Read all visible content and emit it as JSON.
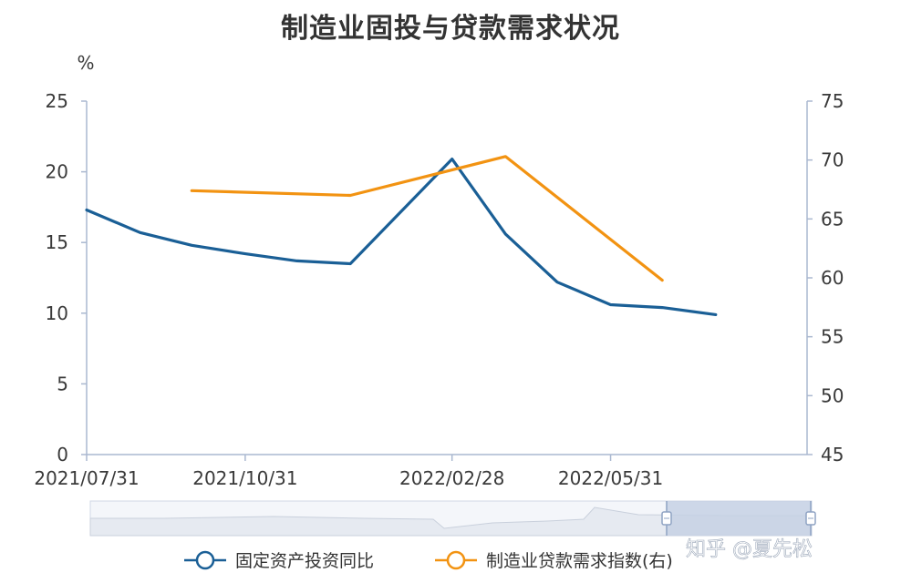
{
  "chart_data": {
    "type": "line",
    "title": "制造业固投与贷款需求状况",
    "left_unit": "%",
    "x_ticks": [
      "2021/07/31",
      "2021/10/31",
      "2022/02/28",
      "2022/05/31"
    ],
    "left_axis": {
      "ylim": [
        0,
        25
      ],
      "ticks": [
        0,
        5,
        10,
        15,
        20,
        25
      ]
    },
    "right_axis": {
      "ylim": [
        45,
        75
      ],
      "ticks": [
        45,
        50,
        55,
        60,
        65,
        70,
        75
      ]
    },
    "series": [
      {
        "name": "固定资产投资同比",
        "axis": "left",
        "color": "#1a5f96",
        "points": [
          {
            "x": "2021-07-31",
            "y": 17.3
          },
          {
            "x": "2021-08-31",
            "y": 15.7
          },
          {
            "x": "2021-09-30",
            "y": 14.8
          },
          {
            "x": "2021-10-31",
            "y": 14.2
          },
          {
            "x": "2021-11-30",
            "y": 13.7
          },
          {
            "x": "2021-12-31",
            "y": 13.5
          },
          {
            "x": "2022-02-28",
            "y": 20.9
          },
          {
            "x": "2022-03-31",
            "y": 15.6
          },
          {
            "x": "2022-04-30",
            "y": 12.2
          },
          {
            "x": "2022-05-31",
            "y": 10.6
          },
          {
            "x": "2022-06-30",
            "y": 10.4
          },
          {
            "x": "2022-07-31",
            "y": 9.9
          }
        ]
      },
      {
        "name": "制造业贷款需求指数(右)",
        "axis": "right",
        "color": "#f29312",
        "points": [
          {
            "x": "2021-09-30",
            "y": 67.4
          },
          {
            "x": "2021-12-31",
            "y": 67.0
          },
          {
            "x": "2022-03-31",
            "y": 70.3
          },
          {
            "x": "2022-06-30",
            "y": 59.8
          }
        ]
      }
    ],
    "grid": false,
    "legend_position": "bottom"
  },
  "watermark": "知乎 @夏先松",
  "colors": {
    "axis": "#aab8d0",
    "slider_fill": "#dde4ef",
    "slider_selected": "#c6d1e4"
  }
}
